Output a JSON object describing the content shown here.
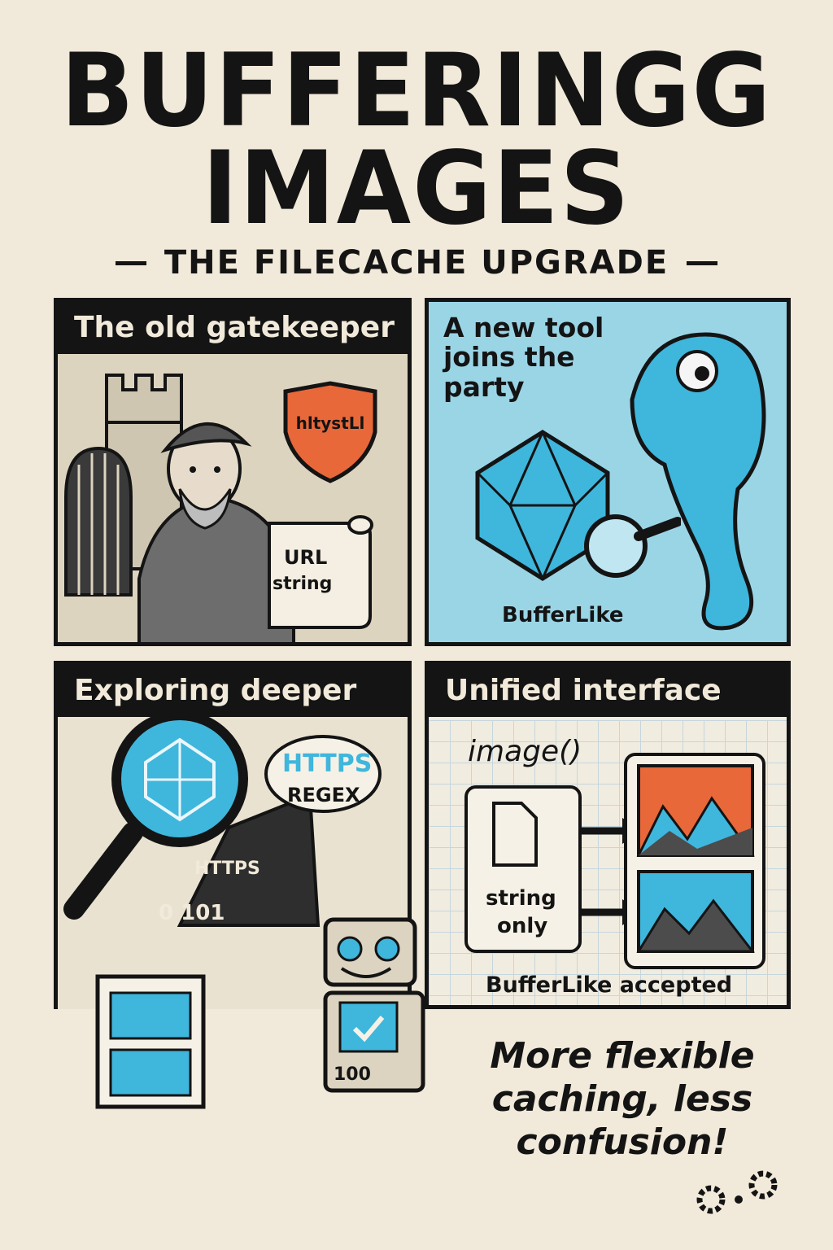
{
  "header": {
    "title_line1": "BUFFERINGG",
    "title_line2": "IMAGES",
    "subtitle": "THE FILECACHE UPGRADE"
  },
  "panels": [
    {
      "caption": "The old gatekeeper",
      "shield_text": "hltystLl",
      "scroll_text_line1": "URL",
      "scroll_text_line2": "string"
    },
    {
      "caption": "A new tool joins the party",
      "object_label": "BufferLike"
    },
    {
      "caption": "Exploring deeper",
      "bubble_line1": "HTTPS",
      "bubble_line2": "REGEX",
      "bits_text_1": "HTTPS",
      "bits_text_2": "0 101",
      "robot_text": "100"
    },
    {
      "caption": "Unified interface",
      "function_label": "image()",
      "input_label_line1": "string",
      "input_label_line2": "only",
      "output_label": "BufferLike accepted"
    }
  ],
  "tagline": "More flexible caching, less confusion!",
  "colors": {
    "background": "#f1e9d9",
    "ink": "#141414",
    "accent_blue": "#3fb6dc",
    "accent_orange": "#e8683a"
  },
  "icons": [
    "castle-icon",
    "shield-icon",
    "scroll-icon",
    "chameleon-icon",
    "polyhedron-icon",
    "magnifier-icon",
    "robot-icon",
    "easel-icon",
    "document-icon",
    "arrow-icon",
    "landscape-icon",
    "gear-icon"
  ]
}
